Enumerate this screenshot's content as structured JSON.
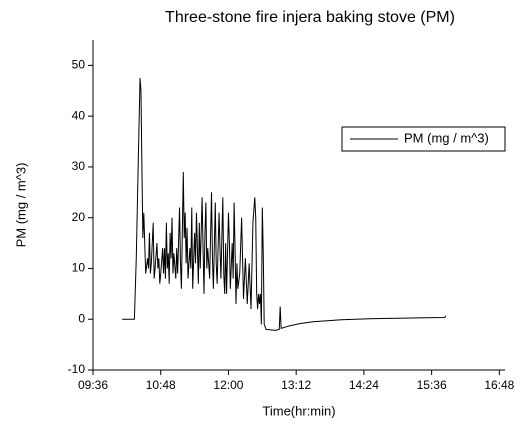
{
  "chart_data": {
    "type": "line",
    "title": "Three-stone fire injera baking stove (PM)",
    "xlabel": "Time(hr:min)",
    "ylabel": "PM (mg / m^3)",
    "x": [
      "10:07",
      "10:20",
      "10:22",
      "10:24",
      "10:26",
      "10:27",
      "10:28",
      "10:29",
      "10:30",
      "10:31",
      "10:32",
      "10:34",
      "10:35",
      "10:36",
      "10:37",
      "10:38",
      "10:40",
      "10:41",
      "10:42",
      "10:44",
      "10:45",
      "10:46",
      "10:47",
      "10:48",
      "10:50",
      "10:51",
      "10:52",
      "10:53",
      "10:54",
      "10:55",
      "10:56",
      "10:57",
      "10:58",
      "10:59",
      "11:00",
      "11:01",
      "11:02",
      "11:04",
      "11:05",
      "11:06",
      "11:08",
      "11:09",
      "11:10",
      "11:12",
      "11:13",
      "11:14",
      "11:15",
      "11:16",
      "11:17",
      "11:19",
      "11:20",
      "11:21",
      "11:22",
      "11:24",
      "11:25",
      "11:26",
      "11:28",
      "11:29",
      "11:30",
      "11:32",
      "11:33",
      "11:34",
      "11:35",
      "11:36",
      "11:37",
      "11:38",
      "11:40",
      "11:42",
      "11:43",
      "11:44",
      "11:46",
      "11:47",
      "11:48",
      "11:50",
      "11:51",
      "11:52",
      "11:54",
      "11:55",
      "11:56",
      "11:57",
      "11:58",
      "12:00",
      "12:01",
      "12:02",
      "12:04",
      "12:05",
      "12:06",
      "12:07",
      "12:08",
      "12:09",
      "12:10",
      "12:12",
      "12:14",
      "12:16",
      "12:18",
      "12:20",
      "12:22",
      "12:24",
      "12:26",
      "12:28",
      "12:29",
      "12:30",
      "12:31",
      "12:32",
      "12:33",
      "12:34",
      "12:35",
      "12:36",
      "12:37",
      "12:38",
      "12:40",
      "12:50",
      "12:54",
      "12:55",
      "12:56",
      "13:05",
      "13:15",
      "13:30",
      "14:00",
      "14:30",
      "15:00",
      "15:30",
      "15:50",
      "15:51"
    ],
    "series": [
      {
        "name": "PM (mg / m^3)",
        "color": "#000000",
        "values": [
          0,
          0,
          12,
          30,
          47.5,
          45,
          30,
          16,
          21,
          15,
          9,
          12,
          10,
          17,
          9,
          11,
          19,
          8,
          10,
          15,
          10,
          12,
          7,
          9,
          14,
          9,
          14,
          8,
          19,
          10,
          13,
          7,
          17,
          12,
          20,
          9,
          13,
          8,
          14,
          9,
          22,
          11,
          6,
          29,
          16,
          21,
          11,
          18,
          8,
          14,
          10,
          22,
          6,
          17,
          11,
          21,
          7,
          19,
          10,
          24,
          14,
          5,
          17,
          23,
          10,
          14,
          8,
          25,
          12,
          6,
          23,
          11,
          7,
          21,
          14,
          8,
          24,
          9,
          5,
          15,
          5,
          21,
          15,
          6,
          15,
          8,
          23,
          14,
          3,
          11,
          6,
          9,
          20,
          4,
          12,
          3,
          11,
          2,
          19,
          24,
          20,
          5,
          2,
          5,
          3,
          5,
          -1,
          22,
          13,
          -1,
          -2,
          -2.2,
          -2,
          2.5,
          -1.8,
          -1.3,
          -0.9,
          -0.5,
          -0.1,
          0.1,
          0.2,
          0.3,
          0.35,
          0.7
        ]
      }
    ],
    "xlim": [
      "09:36",
      "16:54"
    ],
    "xticks": [
      "09:36",
      "10:48",
      "12:00",
      "13:12",
      "14:24",
      "15:36",
      "16:48"
    ],
    "ylim": [
      -10,
      55
    ],
    "yticks": [
      -10,
      0,
      10,
      20,
      30,
      40,
      50
    ],
    "legend": "upper right"
  }
}
